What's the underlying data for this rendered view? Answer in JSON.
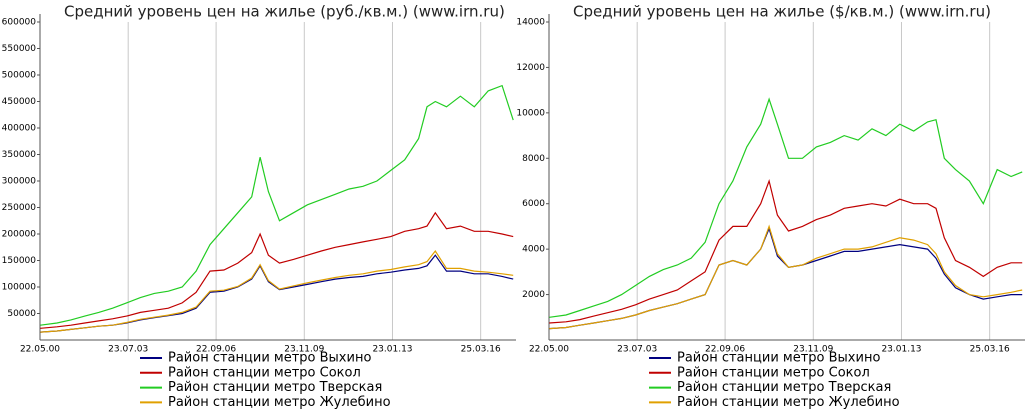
{
  "chart_data": [
    {
      "type": "line",
      "title": "Средний уровень цен на жилье (руб./кв.м.) (www.irn.ru)",
      "x": [
        2000.4,
        2001,
        2001.5,
        2002,
        2002.5,
        2003,
        2003.5,
        2004,
        2004.5,
        2005,
        2005.5,
        2006,
        2006.5,
        2007,
        2007.5,
        2008,
        2008.3,
        2008.6,
        2009,
        2009.5,
        2010,
        2010.5,
        2011,
        2011.5,
        2012,
        2012.5,
        2013,
        2013.5,
        2014,
        2014.3,
        2014.6,
        2015,
        2015.5,
        2016,
        2016.5,
        2017,
        2017.4
      ],
      "xlim": [
        2000.39,
        2017.5
      ],
      "xticks": [
        {
          "value": 2000.39,
          "label": "22.05.00"
        },
        {
          "value": 2003.56,
          "label": "23.07.03"
        },
        {
          "value": 2006.72,
          "label": "22.09.06"
        },
        {
          "value": 2009.89,
          "label": "23.11.09"
        },
        {
          "value": 2013.06,
          "label": "23.01.13"
        },
        {
          "value": 2016.23,
          "label": "25.03.16"
        }
      ],
      "ylim": [
        0,
        600000
      ],
      "yticks": [
        50000,
        100000,
        150000,
        200000,
        250000,
        300000,
        350000,
        400000,
        450000,
        500000,
        550000,
        600000
      ],
      "grid": "x",
      "legend": "bottom",
      "series": [
        {
          "name": "Район станции метро Выхино",
          "color": "#000080",
          "values": [
            15000,
            17000,
            20000,
            23000,
            26000,
            28000,
            32000,
            38000,
            42000,
            46000,
            50000,
            60000,
            90000,
            92000,
            100000,
            115000,
            140000,
            110000,
            95000,
            100000,
            105000,
            110000,
            115000,
            118000,
            120000,
            125000,
            128000,
            132000,
            135000,
            140000,
            160000,
            130000,
            130000,
            125000,
            125000,
            120000,
            115000
          ]
        },
        {
          "name": "Район станции метро Сокол",
          "color": "#c00000",
          "values": [
            22000,
            25000,
            28000,
            32000,
            36000,
            40000,
            45000,
            52000,
            56000,
            60000,
            70000,
            90000,
            130000,
            132000,
            145000,
            165000,
            200000,
            160000,
            145000,
            152000,
            160000,
            168000,
            175000,
            180000,
            185000,
            190000,
            195000,
            205000,
            210000,
            215000,
            240000,
            210000,
            215000,
            205000,
            205000,
            200000,
            195000
          ]
        },
        {
          "name": "Район станции метро Тверская",
          "color": "#22cc22",
          "values": [
            28000,
            32000,
            38000,
            45000,
            52000,
            60000,
            70000,
            80000,
            88000,
            92000,
            100000,
            130000,
            180000,
            210000,
            240000,
            270000,
            345000,
            280000,
            225000,
            240000,
            255000,
            265000,
            275000,
            285000,
            290000,
            300000,
            320000,
            340000,
            380000,
            440000,
            450000,
            440000,
            460000,
            440000,
            470000,
            480000,
            415000
          ]
        },
        {
          "name": "Район станции метро Жулебино",
          "color": "#e0a000",
          "values": [
            15000,
            17000,
            20000,
            23000,
            26000,
            28000,
            33000,
            39000,
            43000,
            47000,
            52000,
            62000,
            92000,
            94000,
            101000,
            117000,
            142000,
            112000,
            96000,
            102000,
            108000,
            113000,
            118000,
            122000,
            125000,
            130000,
            133000,
            138000,
            142000,
            148000,
            168000,
            135000,
            135000,
            130000,
            128000,
            125000,
            122000
          ]
        }
      ]
    },
    {
      "type": "line",
      "title": "Средний уровень цен на жилье ($/кв.м.) (www.irn.ru)",
      "x": [
        2000.4,
        2001,
        2001.5,
        2002,
        2002.5,
        2003,
        2003.5,
        2004,
        2004.5,
        2005,
        2005.5,
        2006,
        2006.5,
        2007,
        2007.5,
        2008,
        2008.3,
        2008.6,
        2009,
        2009.5,
        2010,
        2010.5,
        2011,
        2011.5,
        2012,
        2012.5,
        2013,
        2013.5,
        2014,
        2014.3,
        2014.6,
        2015,
        2015.5,
        2016,
        2016.5,
        2017,
        2017.4
      ],
      "xlim": [
        2000.39,
        2017.5
      ],
      "xticks": [
        {
          "value": 2000.39,
          "label": "22.05.00"
        },
        {
          "value": 2003.56,
          "label": "23.07.03"
        },
        {
          "value": 2006.72,
          "label": "22.09.06"
        },
        {
          "value": 2009.89,
          "label": "23.11.09"
        },
        {
          "value": 2013.06,
          "label": "23.01.13"
        },
        {
          "value": 2016.23,
          "label": "25.03.16"
        }
      ],
      "ylim": [
        0,
        14000
      ],
      "yticks": [
        2000,
        4000,
        6000,
        8000,
        10000,
        12000,
        14000
      ],
      "grid": "x",
      "legend": "bottom",
      "series": [
        {
          "name": "Район станции метро Выхино",
          "color": "#000080",
          "values": [
            500,
            550,
            650,
            750,
            850,
            950,
            1100,
            1300,
            1450,
            1600,
            1800,
            2000,
            3300,
            3500,
            3300,
            4000,
            4900,
            3700,
            3200,
            3300,
            3500,
            3700,
            3900,
            3900,
            4000,
            4100,
            4200,
            4100,
            4000,
            3600,
            2900,
            2300,
            2000,
            1800,
            1900,
            2000,
            2000
          ]
        },
        {
          "name": "Район станции метро Сокол",
          "color": "#c00000",
          "values": [
            750,
            800,
            900,
            1050,
            1200,
            1350,
            1550,
            1800,
            2000,
            2200,
            2600,
            3000,
            4400,
            5000,
            5000,
            6000,
            7000,
            5500,
            4800,
            5000,
            5300,
            5500,
            5800,
            5900,
            6000,
            5900,
            6200,
            6000,
            6000,
            5800,
            4500,
            3500,
            3200,
            2800,
            3200,
            3400,
            3400
          ]
        },
        {
          "name": "Район станции метро Тверская",
          "color": "#22cc22",
          "values": [
            1000,
            1100,
            1300,
            1500,
            1700,
            2000,
            2400,
            2800,
            3100,
            3300,
            3600,
            4300,
            6000,
            7000,
            8500,
            9500,
            10600,
            9500,
            8000,
            8000,
            8500,
            8700,
            9000,
            8800,
            9300,
            9000,
            9500,
            9200,
            9600,
            9700,
            8000,
            7500,
            7000,
            6000,
            7500,
            7200,
            7400
          ]
        },
        {
          "name": "Район станции метро Жулебино",
          "color": "#e0a000",
          "values": [
            500,
            550,
            650,
            750,
            850,
            950,
            1100,
            1300,
            1450,
            1600,
            1800,
            2000,
            3300,
            3500,
            3300,
            4000,
            5000,
            3800,
            3200,
            3300,
            3600,
            3800,
            4000,
            4000,
            4100,
            4300,
            4500,
            4400,
            4200,
            3800,
            3000,
            2400,
            2000,
            1900,
            2000,
            2100,
            2200
          ]
        }
      ]
    }
  ]
}
